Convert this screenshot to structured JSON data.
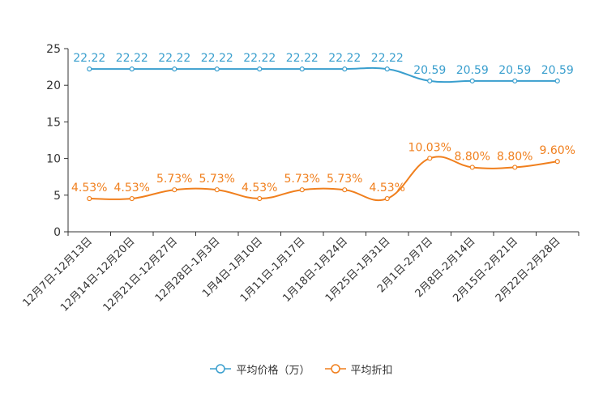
{
  "chart_data": {
    "type": "line",
    "categories": [
      "12月7日-12月13日",
      "12月14日-12月20日",
      "12月21日-12月27日",
      "12月28日-1月3日",
      "1月4日-1月10日",
      "1月11日-1月17日",
      "1月18日-1月24日",
      "1月25日-1月31日",
      "2月1日-2月7日",
      "2月8日-2月14日",
      "2月15日-2月21日",
      "2月22日-2月28日"
    ],
    "series": [
      {
        "name": "平均价格（万）",
        "color": "#3a9fce",
        "values": [
          22.22,
          22.22,
          22.22,
          22.22,
          22.22,
          22.22,
          22.22,
          22.22,
          20.59,
          20.59,
          20.59,
          20.59
        ],
        "labels": [
          "22.22",
          "22.22",
          "22.22",
          "22.22",
          "22.22",
          "22.22",
          "22.22",
          "22.22",
          "20.59",
          "20.59",
          "20.59",
          "20.59"
        ]
      },
      {
        "name": "平均折扣",
        "color": "#f07f1d",
        "values": [
          4.53,
          4.53,
          5.73,
          5.73,
          4.53,
          5.73,
          5.73,
          4.53,
          10.03,
          8.8,
          8.8,
          9.6
        ],
        "labels": [
          "4.53%",
          "4.53%",
          "5.73%",
          "5.73%",
          "4.53%",
          "5.73%",
          "5.73%",
          "4.53%",
          "10.03%",
          "8.80%",
          "8.80%",
          "9.60%"
        ]
      }
    ],
    "ylim": [
      0,
      25
    ],
    "yticks": [
      0,
      5,
      10,
      15,
      20,
      25
    ],
    "title": "",
    "xlabel": "",
    "ylabel": "",
    "grid": false,
    "legend_position": "bottom"
  }
}
